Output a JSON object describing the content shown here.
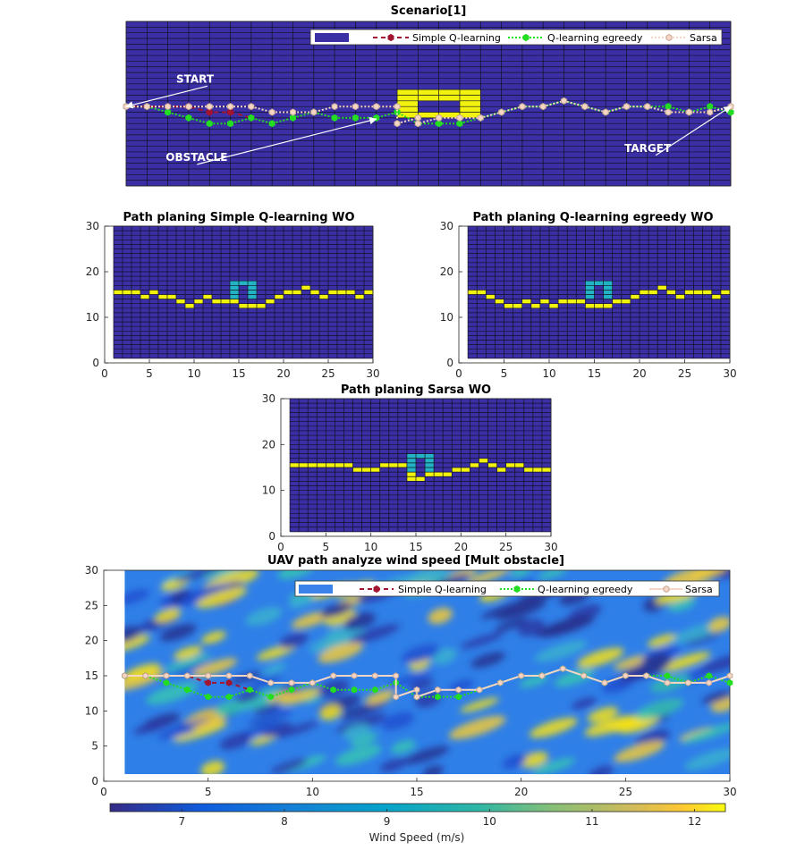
{
  "figure": {
    "panels": [
      {
        "id": "scenario",
        "title": "Scenario[1]",
        "show_axes": false,
        "xlim": [
          1,
          30
        ],
        "ylim": [
          1,
          30
        ],
        "view_ylim": [
          1,
          30
        ],
        "grid_cells": [
          29,
          29
        ],
        "background": "#3b2fa6",
        "grid_line": "#111122",
        "obstacle_color": "#f2f20f",
        "obstacle_cells": [
          [
            14,
            17
          ],
          [
            15,
            17
          ],
          [
            16,
            17
          ],
          [
            17,
            17
          ],
          [
            14,
            16
          ],
          [
            15,
            16
          ],
          [
            16,
            16
          ],
          [
            17,
            16
          ],
          [
            14,
            15
          ],
          [
            17,
            15
          ],
          [
            14,
            14
          ],
          [
            17,
            14
          ],
          [
            14,
            13
          ],
          [
            15,
            13
          ],
          [
            16,
            13
          ],
          [
            17,
            13
          ]
        ],
        "annotations": [
          {
            "text": "START",
            "ax": 3.4,
            "ay": 19.2,
            "tx": 1.0,
            "ty": 15.0
          },
          {
            "text": "OBSTACLE",
            "ax": 2.9,
            "ay": 5.4,
            "tx": 13.0,
            "ty": 12.8
          },
          {
            "text": "TARGET",
            "ax": 24.9,
            "ay": 7.0,
            "tx": 30.0,
            "ty": 15.0
          }
        ],
        "legend": true
      },
      {
        "id": "sq",
        "title": "Path planing Simple Q-learning WO",
        "show_axes": true,
        "xlim": [
          0,
          30
        ],
        "ylim": [
          0,
          30
        ],
        "xticks": [
          0,
          5,
          10,
          15,
          20,
          25,
          30
        ],
        "yticks": [
          0,
          10,
          20,
          30
        ],
        "grid_from": [
          1,
          1
        ],
        "grid_cells": [
          29,
          29
        ],
        "background": "#3b2fa6",
        "grid_line": "#111122",
        "obstacle_color": "#22b3c4",
        "path_color": "#f2f20f",
        "obstacle_cells": [
          [
            14,
            17
          ],
          [
            15,
            17
          ],
          [
            16,
            17
          ],
          [
            14,
            16
          ],
          [
            16,
            16
          ],
          [
            14,
            15
          ],
          [
            16,
            15
          ],
          [
            14,
            14
          ],
          [
            16,
            14
          ]
        ],
        "path_cells": [
          [
            1,
            15
          ],
          [
            2,
            15
          ],
          [
            3,
            15
          ],
          [
            4,
            14
          ],
          [
            5,
            15
          ],
          [
            6,
            14
          ],
          [
            7,
            14
          ],
          [
            8,
            13
          ],
          [
            9,
            12
          ],
          [
            10,
            13
          ],
          [
            11,
            14
          ],
          [
            12,
            13
          ],
          [
            13,
            13
          ],
          [
            14,
            13
          ],
          [
            15,
            12
          ],
          [
            16,
            12
          ],
          [
            17,
            12
          ],
          [
            18,
            13
          ],
          [
            19,
            14
          ],
          [
            20,
            15
          ],
          [
            21,
            15
          ],
          [
            22,
            16
          ],
          [
            23,
            15
          ],
          [
            24,
            14
          ],
          [
            25,
            15
          ],
          [
            26,
            15
          ],
          [
            27,
            15
          ],
          [
            28,
            14
          ],
          [
            29,
            15
          ]
        ]
      },
      {
        "id": "qe",
        "title": "Path planing Q-learning egreedy WO",
        "show_axes": true,
        "xlim": [
          0,
          30
        ],
        "ylim": [
          0,
          30
        ],
        "xticks": [
          0,
          5,
          10,
          15,
          20,
          25,
          30
        ],
        "yticks": [
          0,
          10,
          20,
          30
        ],
        "grid_from": [
          1,
          1
        ],
        "grid_cells": [
          29,
          29
        ],
        "background": "#3b2fa6",
        "grid_line": "#111122",
        "obstacle_color": "#22b3c4",
        "path_color": "#f2f20f",
        "obstacle_cells": [
          [
            14,
            17
          ],
          [
            15,
            17
          ],
          [
            16,
            17
          ],
          [
            14,
            16
          ],
          [
            16,
            16
          ],
          [
            14,
            15
          ],
          [
            16,
            15
          ],
          [
            14,
            14
          ],
          [
            16,
            14
          ]
        ],
        "path_cells": [
          [
            1,
            15
          ],
          [
            2,
            15
          ],
          [
            3,
            14
          ],
          [
            4,
            13
          ],
          [
            5,
            12
          ],
          [
            6,
            12
          ],
          [
            7,
            13
          ],
          [
            8,
            12
          ],
          [
            9,
            13
          ],
          [
            10,
            12
          ],
          [
            11,
            13
          ],
          [
            12,
            13
          ],
          [
            13,
            13
          ],
          [
            14,
            12
          ],
          [
            15,
            12
          ],
          [
            16,
            12
          ],
          [
            17,
            13
          ],
          [
            18,
            13
          ],
          [
            19,
            14
          ],
          [
            20,
            15
          ],
          [
            21,
            15
          ],
          [
            22,
            16
          ],
          [
            23,
            15
          ],
          [
            24,
            14
          ],
          [
            25,
            15
          ],
          [
            26,
            15
          ],
          [
            27,
            15
          ],
          [
            28,
            14
          ],
          [
            29,
            15
          ]
        ]
      },
      {
        "id": "sa",
        "title": "Path planing Sarsa WO",
        "show_axes": true,
        "xlim": [
          0,
          30
        ],
        "ylim": [
          0,
          30
        ],
        "xticks": [
          0,
          5,
          10,
          15,
          20,
          25,
          30
        ],
        "yticks": [
          0,
          10,
          20,
          30
        ],
        "grid_from": [
          1,
          1
        ],
        "grid_cells": [
          29,
          29
        ],
        "background": "#3b2fa6",
        "grid_line": "#111122",
        "obstacle_color": "#22b3c4",
        "path_color": "#f2f20f",
        "obstacle_cells": [
          [
            14,
            17
          ],
          [
            15,
            17
          ],
          [
            16,
            17
          ],
          [
            14,
            16
          ],
          [
            16,
            16
          ],
          [
            14,
            15
          ],
          [
            16,
            15
          ],
          [
            14,
            14
          ],
          [
            16,
            14
          ]
        ],
        "path_cells": [
          [
            1,
            15
          ],
          [
            2,
            15
          ],
          [
            3,
            15
          ],
          [
            4,
            15
          ],
          [
            5,
            15
          ],
          [
            6,
            15
          ],
          [
            7,
            15
          ],
          [
            8,
            14
          ],
          [
            9,
            14
          ],
          [
            10,
            14
          ],
          [
            11,
            15
          ],
          [
            12,
            15
          ],
          [
            13,
            15
          ],
          [
            14,
            12
          ],
          [
            14,
            13
          ],
          [
            15,
            12
          ],
          [
            16,
            13
          ],
          [
            17,
            13
          ],
          [
            18,
            13
          ],
          [
            19,
            14
          ],
          [
            20,
            14
          ],
          [
            21,
            15
          ],
          [
            22,
            16
          ],
          [
            23,
            15
          ],
          [
            24,
            14
          ],
          [
            25,
            15
          ],
          [
            26,
            15
          ],
          [
            27,
            14
          ],
          [
            28,
            14
          ],
          [
            29,
            14
          ]
        ]
      },
      {
        "id": "wind",
        "title": "UAV path analyze wind speed [Mult obstacle]",
        "show_axes": true,
        "xlim": [
          0,
          30
        ],
        "ylim": [
          0,
          30
        ],
        "xticks": [
          0,
          5,
          10,
          15,
          20,
          25,
          30
        ],
        "yticks": [
          0,
          5,
          10,
          15,
          20,
          25,
          30
        ],
        "field_xlim": [
          1,
          30
        ],
        "field_ylim": [
          1,
          30
        ],
        "legend": true,
        "colorbar": {
          "label": "Wind Speed (m/s)",
          "min": 6.3,
          "max": 12.3,
          "ticks": [
            7,
            8,
            9,
            10,
            11,
            12
          ]
        }
      }
    ]
  },
  "legend": {
    "entries": [
      "Simple Q-learning",
      "Q-learning egreedy",
      "Sarsa"
    ]
  },
  "chart_data": {
    "type": "line",
    "title": "UAV path analyze wind speed [Mult obstacle]",
    "xlim": [
      0,
      30
    ],
    "ylim": [
      0,
      30
    ],
    "colorbar_label": "Wind Speed (m/s)",
    "colormap": "parula",
    "series": [
      {
        "name": "Simple Q-learning",
        "color": "#a2142f",
        "x": [
          1,
          2,
          3,
          4,
          5,
          6,
          7
        ],
        "y": [
          15,
          15,
          15,
          15,
          14,
          14,
          13
        ]
      },
      {
        "name": "Q-learning egreedy",
        "color": "#22dd22",
        "x": [
          1,
          2,
          3,
          4,
          5,
          6,
          7,
          8,
          9,
          10,
          11,
          12,
          13,
          14,
          15,
          16,
          17,
          18,
          19,
          20,
          21,
          22,
          23,
          24,
          25,
          26,
          27,
          28,
          29,
          30
        ],
        "y": [
          15,
          15,
          14,
          13,
          12,
          12,
          13,
          12,
          13,
          14,
          13,
          13,
          13,
          14,
          12,
          12,
          12,
          13,
          14,
          15,
          15,
          16,
          15,
          14,
          15,
          15,
          15,
          14,
          15,
          14
        ]
      },
      {
        "name": "Sarsa",
        "color": "#f5d6c4",
        "x": [
          1,
          2,
          3,
          4,
          5,
          6,
          7,
          8,
          9,
          10,
          11,
          12,
          13,
          14,
          14,
          15,
          15,
          16,
          16,
          17,
          18,
          19,
          20,
          21,
          22,
          23,
          24,
          25,
          26,
          27,
          28,
          29,
          30
        ],
        "y": [
          15,
          15,
          15,
          15,
          15,
          15,
          15,
          14,
          14,
          14,
          15,
          15,
          15,
          15,
          12,
          13,
          12,
          13,
          13,
          13,
          13,
          14,
          15,
          15,
          16,
          15,
          14,
          15,
          15,
          14,
          14,
          14,
          15
        ]
      }
    ]
  }
}
